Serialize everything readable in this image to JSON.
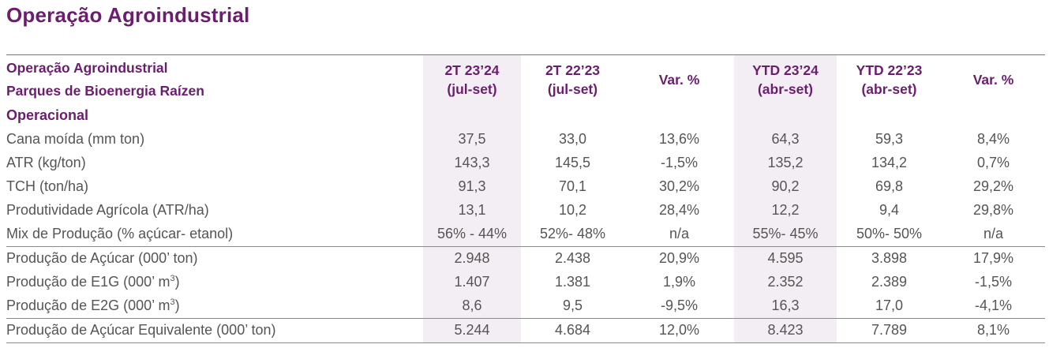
{
  "title": "Operação Agroindustrial",
  "header": {
    "row_label_line1": "Operação Agroindustrial",
    "row_label_line2": "Parques de Bioenergia Raízen",
    "columns": [
      {
        "line1": "2T 23’24",
        "line2": "(jul-set)"
      },
      {
        "line1": "2T 22’23",
        "line2": "(jul-set)"
      },
      {
        "line1": "Var. %",
        "line2": ""
      },
      {
        "line1": "YTD 23’24",
        "line2": "(abr-set)"
      },
      {
        "line1": "YTD 22’23",
        "line2": "(abr-set)"
      },
      {
        "line1": "Var. %",
        "line2": ""
      }
    ]
  },
  "section_label": "Operacional",
  "rows": [
    {
      "label": "Cana moída (mm ton)",
      "values": [
        "37,5",
        "33,0",
        "13,6%",
        "64,3",
        "59,3",
        "8,4%"
      ]
    },
    {
      "label": "ATR (kg/ton)",
      "values": [
        "143,3",
        "145,5",
        "-1,5%",
        "135,2",
        "134,2",
        "0,7%"
      ]
    },
    {
      "label": "TCH (ton/ha)",
      "values": [
        "91,3",
        "70,1",
        "30,2%",
        "90,2",
        "69,8",
        "29,2%"
      ]
    },
    {
      "label": "Produtividade Agrícola (ATR/ha)",
      "values": [
        "13,1",
        "10,2",
        "28,4%",
        "12,2",
        "9,4",
        "29,8%"
      ]
    },
    {
      "label": "Mix de Produção (% açúcar- etanol)",
      "values": [
        "56% - 44%",
        "52%- 48%",
        "n/a",
        "55%- 45%",
        "50%- 50%",
        "n/a"
      ]
    },
    {
      "label": "Produção de Açúcar (000’ ton)",
      "values": [
        "2.948",
        "2.438",
        "20,9%",
        "4.595",
        "3.898",
        "17,9%"
      ]
    },
    {
      "label": "Produção de E1G (000’ m",
      "label_sup": "3",
      "label_end": ")",
      "values": [
        "1.407",
        "1.381",
        "1,9%",
        "2.352",
        "2.389",
        "-1,5%"
      ]
    },
    {
      "label": "Produção de E2G (000’ m",
      "label_sup": "3",
      "label_end": ")",
      "values": [
        "8,6",
        "9,5",
        "-9,5%",
        "16,3",
        "17,0",
        "-4,1%"
      ]
    },
    {
      "label": "Produção de Açúcar Equivalente (000’ ton)",
      "values": [
        "5.244",
        "4.684",
        "12,0%",
        "8.423",
        "7.789",
        "8,1%"
      ]
    }
  ]
}
